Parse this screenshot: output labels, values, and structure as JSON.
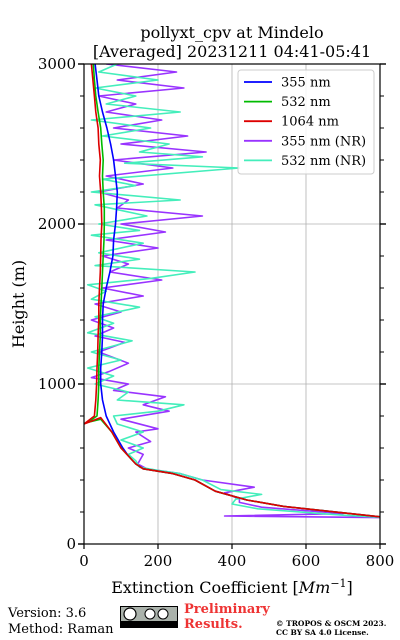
{
  "chart_data": {
    "type": "line",
    "title": "pollyxt_cpv at Mindelo",
    "subtitle": "[Averaged] 20231211 04:41-05:41",
    "xlabel": "Extinction Coefficient [Mm⁻¹]",
    "ylabel": "Height (m)",
    "xlim": [
      0,
      800
    ],
    "ylim": [
      0,
      3000
    ],
    "xticks": [
      "0",
      "200",
      "400",
      "600",
      "800"
    ],
    "yticks": [
      "0",
      "1000",
      "2000",
      "3000"
    ],
    "grid": true,
    "legend_position": "top-right",
    "series": [
      {
        "name": "355 nm",
        "color": "#0000ff",
        "points": [
          [
            820,
            165
          ],
          [
            700,
            195
          ],
          [
            540,
            235
          ],
          [
            440,
            275
          ],
          [
            355,
            330
          ],
          [
            300,
            400
          ],
          [
            240,
            440
          ],
          [
            160,
            470
          ],
          [
            140,
            500
          ],
          [
            120,
            550
          ],
          [
            105,
            600
          ],
          [
            80,
            700
          ],
          [
            60,
            800
          ],
          [
            50,
            900
          ],
          [
            45,
            1000
          ],
          [
            45,
            1100
          ],
          [
            48,
            1200
          ],
          [
            50,
            1300
          ],
          [
            50,
            1400
          ],
          [
            52,
            1500
          ],
          [
            60,
            1600
          ],
          [
            70,
            1700
          ],
          [
            78,
            1800
          ],
          [
            80,
            1900
          ],
          [
            85,
            2000
          ],
          [
            88,
            2100
          ],
          [
            90,
            2200
          ],
          [
            85,
            2300
          ],
          [
            80,
            2400
          ],
          [
            72,
            2500
          ],
          [
            62,
            2600
          ],
          [
            50,
            2700
          ],
          [
            40,
            2800
          ],
          [
            35,
            2900
          ],
          [
            30,
            3000
          ]
        ]
      },
      {
        "name": "532 nm",
        "color": "#00bb00",
        "points": [
          [
            820,
            165
          ],
          [
            700,
            195
          ],
          [
            540,
            235
          ],
          [
            440,
            275
          ],
          [
            355,
            330
          ],
          [
            300,
            400
          ],
          [
            240,
            440
          ],
          [
            160,
            470
          ],
          [
            140,
            500
          ],
          [
            120,
            550
          ],
          [
            100,
            600
          ],
          [
            75,
            700
          ],
          [
            45,
            780
          ],
          [
            10,
            760
          ],
          [
            35,
            800
          ],
          [
            38,
            900
          ],
          [
            40,
            1000
          ],
          [
            40,
            1100
          ],
          [
            42,
            1200
          ],
          [
            44,
            1300
          ],
          [
            44,
            1400
          ],
          [
            46,
            1500
          ],
          [
            48,
            1600
          ],
          [
            50,
            1700
          ],
          [
            52,
            1800
          ],
          [
            54,
            1900
          ],
          [
            55,
            2000
          ],
          [
            55,
            2100
          ],
          [
            52,
            2200
          ],
          [
            50,
            2300
          ],
          [
            52,
            2400
          ],
          [
            48,
            2500
          ],
          [
            45,
            2600
          ],
          [
            38,
            2700
          ],
          [
            32,
            2800
          ],
          [
            28,
            2900
          ],
          [
            25,
            3000
          ]
        ]
      },
      {
        "name": "1064 nm",
        "color": "#dd0000",
        "points": [
          [
            820,
            165
          ],
          [
            700,
            195
          ],
          [
            540,
            235
          ],
          [
            440,
            275
          ],
          [
            355,
            330
          ],
          [
            300,
            400
          ],
          [
            240,
            440
          ],
          [
            160,
            470
          ],
          [
            140,
            500
          ],
          [
            120,
            550
          ],
          [
            100,
            600
          ],
          [
            75,
            700
          ],
          [
            45,
            790
          ],
          [
            0,
            750
          ],
          [
            28,
            800
          ],
          [
            32,
            900
          ],
          [
            34,
            1000
          ],
          [
            35,
            1100
          ],
          [
            37,
            1200
          ],
          [
            38,
            1300
          ],
          [
            40,
            1400
          ],
          [
            40,
            1500
          ],
          [
            42,
            1600
          ],
          [
            44,
            1700
          ],
          [
            45,
            1800
          ],
          [
            46,
            1900
          ],
          [
            48,
            2000
          ],
          [
            47,
            2100
          ],
          [
            45,
            2200
          ],
          [
            42,
            2300
          ],
          [
            44,
            2400
          ],
          [
            40,
            2500
          ],
          [
            38,
            2600
          ],
          [
            32,
            2700
          ],
          [
            28,
            2800
          ],
          [
            24,
            2900
          ],
          [
            20,
            3000
          ]
        ]
      },
      {
        "name": "355 nm (NR)",
        "color": "#9933ff",
        "points": [
          [
            820,
            165
          ],
          [
            380,
            175
          ],
          [
            700,
            190
          ],
          [
            480,
            230
          ],
          [
            420,
            260
          ],
          [
            420,
            280
          ],
          [
            380,
            320
          ],
          [
            460,
            355
          ],
          [
            320,
            400
          ],
          [
            260,
            440
          ],
          [
            200,
            460
          ],
          [
            170,
            470
          ],
          [
            145,
            500
          ],
          [
            160,
            560
          ],
          [
            120,
            600
          ],
          [
            180,
            640
          ],
          [
            140,
            700
          ],
          [
            200,
            720
          ],
          [
            100,
            780
          ],
          [
            230,
            830
          ],
          [
            160,
            870
          ],
          [
            220,
            920
          ],
          [
            80,
            960
          ],
          [
            120,
            1000
          ],
          [
            20,
            1040
          ],
          [
            70,
            1080
          ],
          [
            120,
            1130
          ],
          [
            40,
            1200
          ],
          [
            110,
            1260
          ],
          [
            30,
            1300
          ],
          [
            80,
            1350
          ],
          [
            20,
            1400
          ],
          [
            100,
            1450
          ],
          [
            30,
            1500
          ],
          [
            160,
            1550
          ],
          [
            50,
            1600
          ],
          [
            210,
            1650
          ],
          [
            70,
            1700
          ],
          [
            120,
            1750
          ],
          [
            50,
            1800
          ],
          [
            200,
            1850
          ],
          [
            60,
            1900
          ],
          [
            220,
            1950
          ],
          [
            100,
            2000
          ],
          [
            320,
            2050
          ],
          [
            90,
            2100
          ],
          [
            120,
            2150
          ],
          [
            40,
            2200
          ],
          [
            160,
            2250
          ],
          [
            60,
            2300
          ],
          [
            240,
            2350
          ],
          [
            80,
            2400
          ],
          [
            330,
            2450
          ],
          [
            100,
            2500
          ],
          [
            280,
            2550
          ],
          [
            80,
            2600
          ],
          [
            210,
            2650
          ],
          [
            60,
            2700
          ],
          [
            140,
            2750
          ],
          [
            40,
            2800
          ],
          [
            270,
            2850
          ],
          [
            90,
            2900
          ],
          [
            250,
            2950
          ],
          [
            60,
            3000
          ]
        ]
      },
      {
        "name": "532 nm (NR)",
        "color": "#44eebb",
        "points": [
          [
            820,
            165
          ],
          [
            700,
            180
          ],
          [
            470,
            220
          ],
          [
            400,
            250
          ],
          [
            410,
            280
          ],
          [
            480,
            310
          ],
          [
            370,
            340
          ],
          [
            320,
            400
          ],
          [
            260,
            440
          ],
          [
            200,
            460
          ],
          [
            150,
            480
          ],
          [
            140,
            520
          ],
          [
            120,
            560
          ],
          [
            160,
            600
          ],
          [
            100,
            650
          ],
          [
            160,
            700
          ],
          [
            90,
            750
          ],
          [
            80,
            800
          ],
          [
            200,
            830
          ],
          [
            270,
            870
          ],
          [
            90,
            900
          ],
          [
            120,
            950
          ],
          [
            30,
            1000
          ],
          [
            80,
            1050
          ],
          [
            10,
            1100
          ],
          [
            100,
            1150
          ],
          [
            20,
            1200
          ],
          [
            130,
            1270
          ],
          [
            10,
            1320
          ],
          [
            80,
            1380
          ],
          [
            30,
            1420
          ],
          [
            150,
            1480
          ],
          [
            20,
            1530
          ],
          [
            60,
            1580
          ],
          [
            10,
            1620
          ],
          [
            180,
            1660
          ],
          [
            300,
            1700
          ],
          [
            30,
            1740
          ],
          [
            150,
            1780
          ],
          [
            40,
            1820
          ],
          [
            160,
            1880
          ],
          [
            20,
            1930
          ],
          [
            150,
            1960
          ],
          [
            40,
            2000
          ],
          [
            170,
            2050
          ],
          [
            30,
            2120
          ],
          [
            260,
            2150
          ],
          [
            20,
            2200
          ],
          [
            140,
            2240
          ],
          [
            50,
            2280
          ],
          [
            420,
            2350
          ],
          [
            110,
            2380
          ],
          [
            320,
            2420
          ],
          [
            150,
            2450
          ],
          [
            230,
            2500
          ],
          [
            50,
            2550
          ],
          [
            180,
            2600
          ],
          [
            20,
            2650
          ],
          [
            260,
            2700
          ],
          [
            60,
            2750
          ],
          [
            140,
            2800
          ],
          [
            30,
            2850
          ],
          [
            200,
            2900
          ],
          [
            40,
            2950
          ],
          [
            90,
            3000
          ]
        ]
      }
    ]
  },
  "footer": {
    "version": "Version: 3.6",
    "method": "Method: Raman",
    "preliminary_line1": "Preliminary",
    "preliminary_line2": "Results.",
    "copyright_line1": "© TROPOS & OSCM 2023.",
    "copyright_line2": "CC BY SA 4.0 License."
  }
}
